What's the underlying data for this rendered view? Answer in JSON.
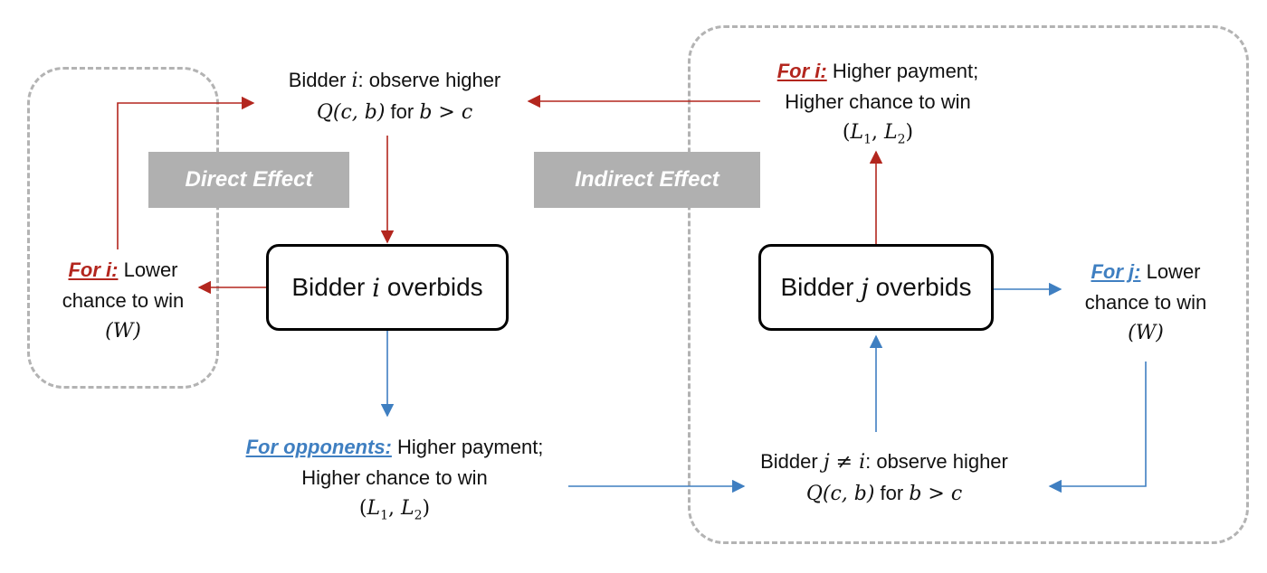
{
  "effects": {
    "direct": "Direct Effect",
    "indirect": "Indirect Effect"
  },
  "bidder_i": {
    "observe_prefix": "Bidder ",
    "observe_var": "i",
    "observe_suffix": ": observe higher",
    "q_expr": "Q(c, b)",
    "for_word": " for ",
    "cond": "b > c",
    "overbids_prefix": "Bidder ",
    "overbids_var": "i",
    "overbids_suffix": " overbids",
    "outcome_tag": "For i:",
    "outcome_line1": " Lower",
    "outcome_line2": "chance to win",
    "outcome_math": "(W)"
  },
  "opponents": {
    "tag": "For opponents:",
    "line1": " Higher payment;",
    "line2": "Higher chance to win",
    "math_l1": "L",
    "math_sub1": "1",
    "math_l2": "L",
    "math_sub2": "2"
  },
  "bidder_j": {
    "observe_prefix": "Bidder ",
    "observe_var": "j ≠ i",
    "observe_suffix": ": observe higher",
    "q_expr": "Q(c, b)",
    "for_word": " for ",
    "cond": "b > c",
    "overbids_prefix": "Bidder ",
    "overbids_var": "j",
    "overbids_suffix": " overbids",
    "outcome_tag": "For j:",
    "outcome_line1": " Lower",
    "outcome_line2": "chance to win",
    "outcome_math": "(W)"
  },
  "indirect_i": {
    "tag": "For i:",
    "line1": "  Higher payment;",
    "line2": "Higher chance to win",
    "math_l1": "L",
    "math_sub1": "1",
    "math_l2": "L",
    "math_sub2": "2"
  },
  "colors": {
    "red": "#b3261e",
    "blue": "#3f7fc1",
    "dashed": "#b3b3b3",
    "effect_bg": "#b0b0b0"
  }
}
